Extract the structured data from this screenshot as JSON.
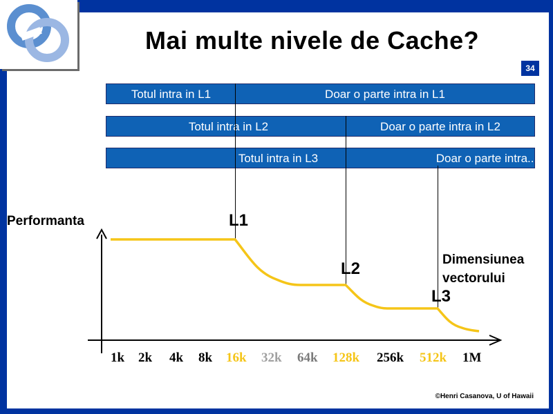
{
  "title": "Mai multe nivele de Cache?",
  "slide_number": "34",
  "bars": {
    "l1": {
      "left": "Totul intra in L1",
      "right": "Doar o parte intra in L1"
    },
    "l2": {
      "left": "Totul intra in L2",
      "right": "Doar o parte intra in L2"
    },
    "l3": {
      "left": "Totul intra in L3",
      "right": "Doar o parte intra..."
    }
  },
  "axis": {
    "y_label": "Performanta",
    "x_label_line1": "Dimensiunea",
    "x_label_line2": "vectorului"
  },
  "markers": {
    "l1": "L1",
    "l2": "L2",
    "l3": "L3"
  },
  "ticks": [
    {
      "label": "1k",
      "color": "#000000"
    },
    {
      "label": "2k",
      "color": "#000000"
    },
    {
      "label": "4k",
      "color": "#000000"
    },
    {
      "label": "8k",
      "color": "#000000"
    },
    {
      "label": "16k",
      "color": "#f5c518"
    },
    {
      "label": "32k",
      "color": "#a0a0a0"
    },
    {
      "label": "64k",
      "color": "#7a7a7a"
    },
    {
      "label": "128k",
      "color": "#f5c518"
    },
    {
      "label": "256k",
      "color": "#000000"
    },
    {
      "label": "512k",
      "color": "#f5c518"
    },
    {
      "label": "1M",
      "color": "#000000"
    }
  ],
  "credit": "©Henri Casanova, U of Hawaii",
  "colors": {
    "background": "#0033a0",
    "bar": "#0f62b5",
    "curve": "#f5c518"
  }
}
